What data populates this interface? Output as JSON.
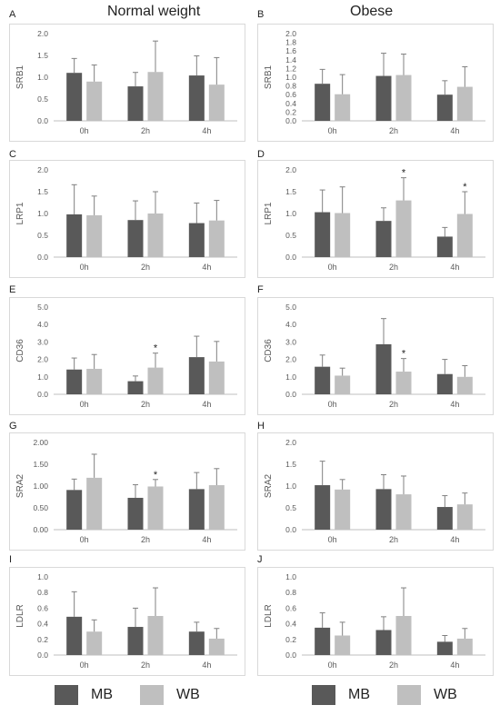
{
  "column_titles": [
    "Normal weight",
    "Obese"
  ],
  "legend": {
    "mb_label": "MB",
    "wb_label": "WB"
  },
  "colors": {
    "MB": "#595959",
    "WB": "#bfbfbf"
  },
  "chart_data": [
    {
      "panel": "A",
      "type": "bar",
      "group": "Normal weight",
      "ylabel": "SRB1",
      "categories": [
        "0h",
        "2h",
        "4h"
      ],
      "yticks": [
        "0.0",
        "0.5",
        "1.0",
        "1.5",
        "2.0"
      ],
      "ylim": [
        0,
        2.0
      ],
      "series": [
        {
          "name": "MB",
          "values": [
            1.1,
            0.79,
            1.04
          ],
          "errors": [
            0.33,
            0.32,
            0.45
          ]
        },
        {
          "name": "WB",
          "values": [
            0.9,
            1.12,
            0.83
          ],
          "errors": [
            0.38,
            0.71,
            0.62
          ]
        }
      ],
      "significant": []
    },
    {
      "panel": "B",
      "type": "bar",
      "group": "Obese",
      "ylabel": "SRB1",
      "categories": [
        "0h",
        "2h",
        "4h"
      ],
      "yticks": [
        "0.0",
        "0.2",
        "0.4",
        "0.6",
        "0.8",
        "1.0",
        "1.2",
        "1.4",
        "1.6",
        "1.8",
        "2.0"
      ],
      "ylim": [
        0,
        2.0
      ],
      "series": [
        {
          "name": "MB",
          "values": [
            0.85,
            1.03,
            0.6
          ],
          "errors": [
            0.33,
            0.52,
            0.32
          ]
        },
        {
          "name": "WB",
          "values": [
            0.61,
            1.05,
            0.78
          ],
          "errors": [
            0.45,
            0.48,
            0.46
          ]
        }
      ],
      "significant": []
    },
    {
      "panel": "C",
      "type": "bar",
      "group": "Normal weight",
      "ylabel": "LRP1",
      "categories": [
        "0h",
        "2h",
        "4h"
      ],
      "yticks": [
        "0.0",
        "0.5",
        "1.0",
        "1.5",
        "2.0"
      ],
      "ylim": [
        0,
        2.0
      ],
      "series": [
        {
          "name": "MB",
          "values": [
            0.98,
            0.85,
            0.78
          ],
          "errors": [
            0.68,
            0.44,
            0.46
          ]
        },
        {
          "name": "WB",
          "values": [
            0.96,
            1.0,
            0.84
          ],
          "errors": [
            0.44,
            0.5,
            0.46
          ]
        }
      ],
      "significant": []
    },
    {
      "panel": "D",
      "type": "bar",
      "group": "Obese",
      "ylabel": "LRP1",
      "categories": [
        "0h",
        "2h",
        "4h"
      ],
      "yticks": [
        "0.0",
        "0.5",
        "1.0",
        "1.5",
        "2.0"
      ],
      "ylim": [
        0,
        2.0
      ],
      "series": [
        {
          "name": "MB",
          "values": [
            1.03,
            0.83,
            0.47
          ],
          "errors": [
            0.51,
            0.3,
            0.21
          ]
        },
        {
          "name": "WB",
          "values": [
            1.01,
            1.3,
            0.99
          ],
          "errors": [
            0.6,
            0.52,
            0.51
          ]
        }
      ],
      "significant": [
        [
          1,
          1
        ],
        [
          2,
          1
        ]
      ],
      "sig_marker": "*"
    },
    {
      "panel": "E",
      "type": "bar",
      "group": "Normal weight",
      "ylabel": "CD36",
      "categories": [
        "0h",
        "2h",
        "4h"
      ],
      "yticks": [
        "0.0",
        "1.0",
        "2.0",
        "3.0",
        "4.0",
        "5.0"
      ],
      "ylim": [
        0,
        5.0
      ],
      "series": [
        {
          "name": "MB",
          "values": [
            1.42,
            0.75,
            2.13
          ],
          "errors": [
            0.66,
            0.3,
            1.2
          ]
        },
        {
          "name": "WB",
          "values": [
            1.46,
            1.53,
            1.88
          ],
          "errors": [
            0.82,
            0.83,
            1.15
          ]
        }
      ],
      "significant": [
        [
          1,
          1
        ]
      ],
      "sig_marker": "*"
    },
    {
      "panel": "F",
      "type": "bar",
      "group": "Obese",
      "ylabel": "CD36",
      "categories": [
        "0h",
        "2h",
        "4h"
      ],
      "yticks": [
        "0.0",
        "1.0",
        "2.0",
        "3.0",
        "4.0",
        "5.0"
      ],
      "ylim": [
        0,
        5.0
      ],
      "series": [
        {
          "name": "MB",
          "values": [
            1.58,
            2.87,
            1.16
          ],
          "errors": [
            0.67,
            1.47,
            0.84
          ]
        },
        {
          "name": "WB",
          "values": [
            1.07,
            1.3,
            1.0
          ],
          "errors": [
            0.43,
            0.75,
            0.64
          ]
        }
      ],
      "significant": [
        [
          1,
          1
        ]
      ],
      "sig_marker": "*"
    },
    {
      "panel": "G",
      "type": "bar",
      "group": "Normal weight",
      "ylabel": "SRA2",
      "categories": [
        "0h",
        "2h",
        "4h"
      ],
      "yticks": [
        "0.00",
        "0.50",
        "1.00",
        "1.50",
        "2.00"
      ],
      "ylim": [
        0,
        2.0
      ],
      "series": [
        {
          "name": "MB",
          "values": [
            0.91,
            0.73,
            0.93
          ],
          "errors": [
            0.25,
            0.3,
            0.38
          ]
        },
        {
          "name": "WB",
          "values": [
            1.19,
            0.99,
            1.02
          ],
          "errors": [
            0.54,
            0.16,
            0.38
          ]
        }
      ],
      "significant": [
        [
          1,
          1
        ]
      ],
      "sig_marker": "*"
    },
    {
      "panel": "H",
      "type": "bar",
      "group": "Obese",
      "ylabel": "SRA2",
      "categories": [
        "0h",
        "2h",
        "4h"
      ],
      "yticks": [
        "0.0",
        "0.5",
        "1.0",
        "1.5",
        "2.0"
      ],
      "ylim": [
        0,
        2.0
      ],
      "series": [
        {
          "name": "MB",
          "values": [
            1.02,
            0.93,
            0.52
          ],
          "errors": [
            0.55,
            0.33,
            0.26
          ]
        },
        {
          "name": "WB",
          "values": [
            0.92,
            0.81,
            0.58
          ],
          "errors": [
            0.23,
            0.42,
            0.26
          ]
        }
      ],
      "significant": []
    },
    {
      "panel": "I",
      "type": "bar",
      "group": "Normal weight",
      "ylabel": "LDLR",
      "categories": [
        "0h",
        "2h",
        "4h"
      ],
      "yticks": [
        "0.0",
        "0.2",
        "0.4",
        "0.6",
        "0.8",
        "1.0"
      ],
      "ylim": [
        0,
        1.0
      ],
      "series": [
        {
          "name": "MB",
          "values": [
            0.49,
            0.36,
            0.3
          ],
          "errors": [
            0.32,
            0.24,
            0.12
          ]
        },
        {
          "name": "WB",
          "values": [
            0.3,
            0.5,
            0.21
          ],
          "errors": [
            0.15,
            0.36,
            0.13
          ]
        }
      ],
      "significant": []
    },
    {
      "panel": "J",
      "type": "bar",
      "group": "Obese",
      "ylabel": "LDLR",
      "categories": [
        "0h",
        "2h",
        "4h"
      ],
      "yticks": [
        "0.0",
        "0.2",
        "0.4",
        "0.6",
        "0.8",
        "1.0"
      ],
      "ylim": [
        0,
        1.0
      ],
      "series": [
        {
          "name": "MB",
          "values": [
            0.35,
            0.32,
            0.17
          ],
          "errors": [
            0.19,
            0.17,
            0.08
          ]
        },
        {
          "name": "WB",
          "values": [
            0.25,
            0.5,
            0.21
          ],
          "errors": [
            0.17,
            0.36,
            0.13
          ]
        }
      ],
      "significant": []
    }
  ]
}
